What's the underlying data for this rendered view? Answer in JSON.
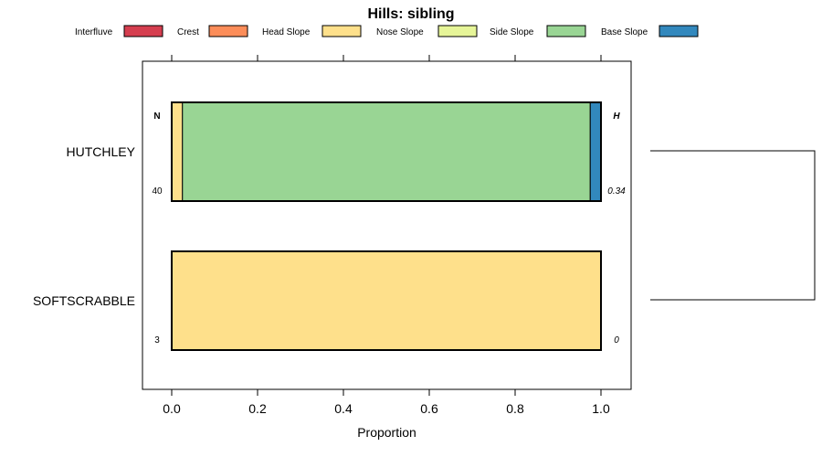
{
  "chart_data": {
    "type": "bar",
    "orientation": "horizontal",
    "stacked": true,
    "title": "Hills: sibling",
    "xlabel": "Proportion",
    "ylabel": "",
    "xlim": [
      0,
      1
    ],
    "x_ticks": [
      "0.0",
      "0.2",
      "0.4",
      "0.6",
      "0.8",
      "1.0"
    ],
    "x_tick_values": [
      0,
      0.2,
      0.4,
      0.6,
      0.8,
      1.0
    ],
    "legend_position": "top",
    "legend": [
      {
        "name": "Interfluve",
        "color": "#d53e4f"
      },
      {
        "name": "Crest",
        "color": "#fc8d59"
      },
      {
        "name": "Head Slope",
        "color": "#fee08b"
      },
      {
        "name": "Nose Slope",
        "color": "#e6f598"
      },
      {
        "name": "Side Slope",
        "color": "#99d594"
      },
      {
        "name": "Base Slope",
        "color": "#3288bd"
      }
    ],
    "categories": [
      "HUTCHLEY",
      "SOFTSCRABBLE"
    ],
    "series": [
      {
        "name": "Interfluve",
        "values": [
          0.0,
          0.0
        ]
      },
      {
        "name": "Crest",
        "values": [
          0.0,
          0.0
        ]
      },
      {
        "name": "Head Slope",
        "values": [
          0.025,
          1.0
        ]
      },
      {
        "name": "Nose Slope",
        "values": [
          0.0,
          0.0
        ]
      },
      {
        "name": "Side Slope",
        "values": [
          0.95,
          0.0
        ]
      },
      {
        "name": "Base Slope",
        "values": [
          0.025,
          0.0
        ]
      }
    ],
    "n_header": "N",
    "h_header": "H",
    "n_values": [
      "40",
      "3"
    ],
    "h_values": [
      "0.34",
      "0"
    ]
  }
}
